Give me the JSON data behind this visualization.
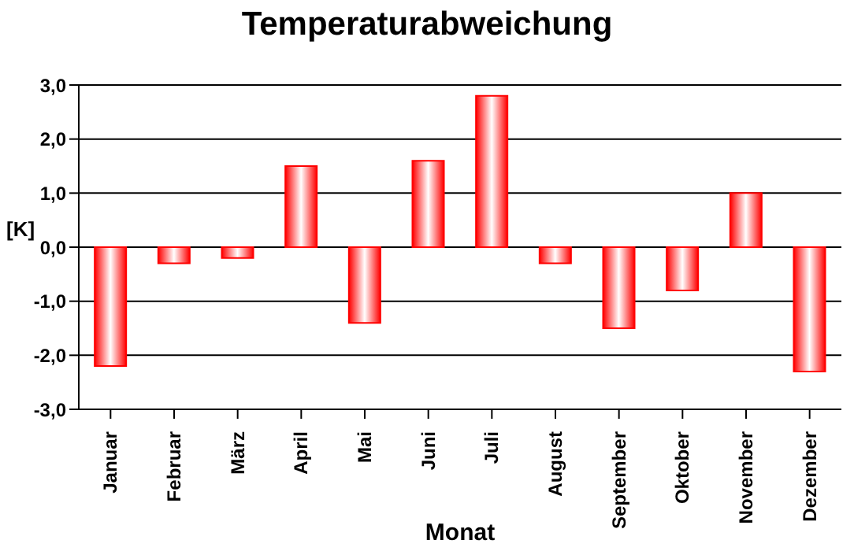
{
  "chart_data": {
    "type": "bar",
    "title": "Temperaturabweichung",
    "xlabel": "Monat",
    "ylabel": "[K]",
    "categories": [
      "Januar",
      "Februar",
      "März",
      "April",
      "Mai",
      "Juni",
      "Juli",
      "August",
      "September",
      "Oktober",
      "November",
      "Dezember"
    ],
    "values": [
      -2.2,
      -0.3,
      -0.2,
      1.5,
      -1.4,
      1.6,
      2.8,
      -0.3,
      -1.5,
      -0.8,
      1.0,
      -2.3
    ],
    "color": "#ff0000",
    "ylim": [
      -3,
      3
    ],
    "yticks": [
      {
        "value": -3,
        "label": "-3,0"
      },
      {
        "value": -2,
        "label": "-2,0"
      },
      {
        "value": -1,
        "label": "-1,0"
      },
      {
        "value": 0,
        "label": "0,0"
      },
      {
        "value": 1,
        "label": "1,0"
      },
      {
        "value": 2,
        "label": "2,0"
      },
      {
        "value": 3,
        "label": "3,0"
      }
    ],
    "grid": "y",
    "legend": false
  }
}
